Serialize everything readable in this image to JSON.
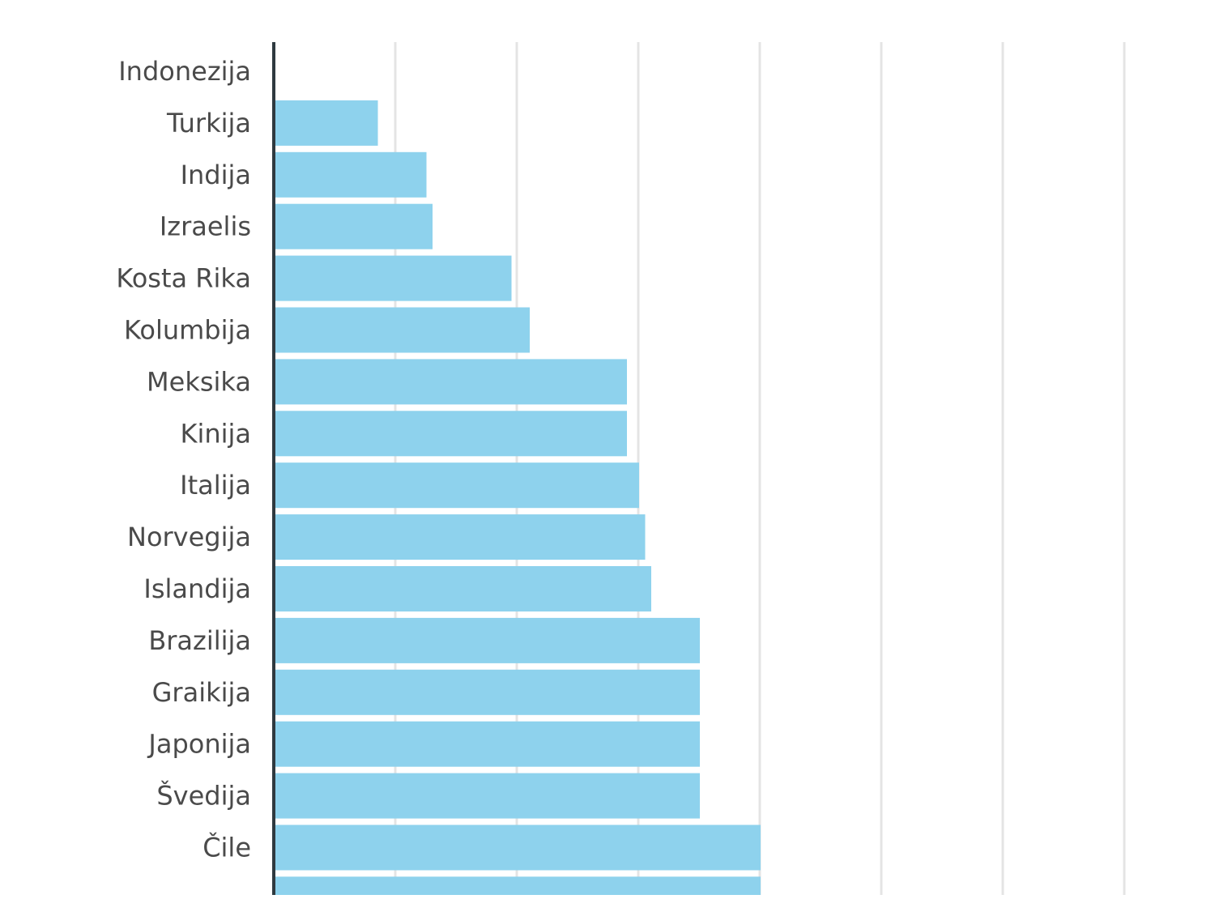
{
  "chart_data": {
    "type": "bar",
    "orientation": "horizontal",
    "title": "",
    "xlabel": "",
    "ylabel": "",
    "grid": true,
    "xlim": [
      0,
      7
    ],
    "categories": [
      "Indonezija",
      "Turkija",
      "Indija",
      "Izraelis",
      "Kosta Rika",
      "Kolumbija",
      "Meksika",
      "Kinija",
      "Italija",
      "Norvegija",
      "Islandija",
      "Brazilija",
      "Graikija",
      "Japonija",
      "Švedija",
      "Čile"
    ],
    "values": [
      0,
      0.85,
      1.25,
      1.3,
      1.95,
      2.1,
      2.9,
      2.9,
      3.0,
      3.05,
      3.1,
      3.5,
      3.5,
      3.5,
      3.5,
      4.0
    ],
    "bar_color": "#8ed2ed",
    "grid_color": "#e4e4e4",
    "axis_color": "#2f3a40",
    "label_color": "#4a4a4a"
  }
}
